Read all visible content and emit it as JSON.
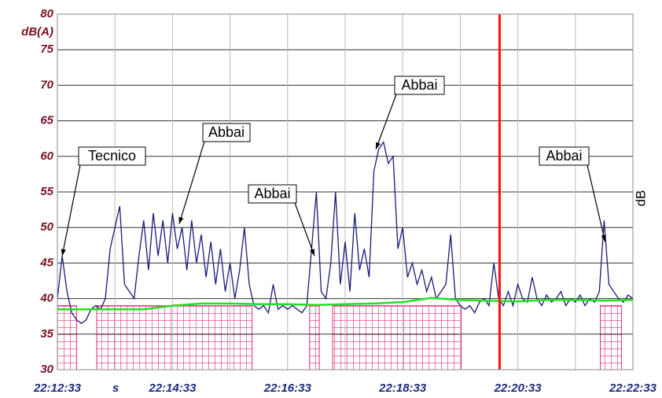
{
  "chart_data": {
    "type": "line",
    "ylabel": "dB(A)",
    "y2label": "dB",
    "xlabel": "s",
    "ylim": [
      30,
      80
    ],
    "yticks": [
      30,
      35,
      40,
      45,
      50,
      55,
      60,
      65,
      70,
      75,
      80
    ],
    "xlim": [
      79953,
      80553
    ],
    "xticks": [
      {
        "value": 79953,
        "label": "22:12:33"
      },
      {
        "value": 80073,
        "label": "22:14:33"
      },
      {
        "value": 80193,
        "label": "22:16:33"
      },
      {
        "value": 80313,
        "label": "22:18:33"
      },
      {
        "value": 80433,
        "label": "22:20:33"
      },
      {
        "value": 80553,
        "label": "22:22:33"
      }
    ],
    "xgrid": [
      80013,
      80133,
      80253,
      80373,
      80493
    ],
    "grid": true,
    "series": [
      {
        "color": "#1a1a7a",
        "x": [
          79953,
          79958,
          79963,
          79968,
          79973,
          79978,
          79983,
          79988,
          79993,
          79998,
          80003,
          80008,
          80013,
          80018,
          80023,
          80028,
          80033,
          80038,
          80043,
          80048,
          80053,
          80058,
          80063,
          80068,
          80073,
          80078,
          80083,
          80088,
          80093,
          80098,
          80103,
          80108,
          80113,
          80118,
          80123,
          80128,
          80133,
          80138,
          80143,
          80148,
          80153,
          80158,
          80163,
          80168,
          80173,
          80178,
          80183,
          80188,
          80193,
          80198,
          80203,
          80208,
          80213,
          80218,
          80223,
          80228,
          80233,
          80238,
          80243,
          80248,
          80253,
          80258,
          80263,
          80268,
          80273,
          80278,
          80283,
          80288,
          80293,
          80298,
          80303,
          80308,
          80313,
          80318,
          80323,
          80328,
          80333,
          80338,
          80343,
          80348,
          80353,
          80358,
          80363,
          80368,
          80373,
          80378,
          80383,
          80388,
          80393,
          80398,
          80403,
          80408,
          80413,
          80418,
          80423,
          80428,
          80433,
          80438,
          80443,
          80448,
          80453,
          80458,
          80463,
          80468,
          80473,
          80478,
          80483,
          80488,
          80493,
          80498,
          80503,
          80508,
          80513,
          80518,
          80523,
          80528,
          80533,
          80538,
          80543,
          80548,
          80553
        ],
        "values": [
          40,
          46,
          41,
          38,
          37,
          36.5,
          37,
          38.5,
          39,
          38.5,
          40,
          47,
          50,
          53,
          42,
          41,
          40,
          46,
          51,
          44,
          52,
          46,
          51,
          45,
          52,
          47,
          50,
          44,
          51,
          45,
          49,
          43,
          48,
          42,
          47,
          41,
          45,
          40,
          44,
          50,
          42,
          39,
          38.5,
          39,
          38,
          42,
          38.5,
          39,
          38.5,
          39,
          38.5,
          38,
          39,
          47,
          55,
          41,
          40,
          45,
          55,
          42,
          48,
          41,
          52,
          44,
          47,
          43,
          58,
          61,
          62,
          59,
          60,
          47,
          50,
          43,
          45,
          42,
          44,
          41,
          43,
          40,
          41,
          42,
          49,
          40,
          39,
          38.5,
          39,
          38,
          39.5,
          40,
          39,
          45,
          40,
          39,
          41,
          39,
          42,
          40,
          39.5,
          43,
          40,
          39,
          40.5,
          39.5,
          40,
          41,
          39,
          40,
          39.5,
          40.5,
          39,
          40,
          39.5,
          41,
          51,
          42,
          41,
          40,
          39.5,
          40.5,
          40
        ]
      },
      {
        "color": "#22e022",
        "x": [
          79953,
          79983,
          80013,
          80043,
          80073,
          80103,
          80133,
          80163,
          80193,
          80223,
          80253,
          80283,
          80313,
          80343,
          80373,
          80403,
          80433,
          80463,
          80493,
          80523,
          80553
        ],
        "values": [
          38.5,
          38.5,
          38.5,
          38.5,
          39,
          39.3,
          39.3,
          39.2,
          39.2,
          39.1,
          39.2,
          39.3,
          39.5,
          40.1,
          39.8,
          39.7,
          39.6,
          39.8,
          39.8,
          39.7,
          39.8
        ]
      }
    ],
    "marked_periods": {
      "color": "#e0287a",
      "start": [
        79953,
        79994,
        80216,
        80240,
        80519
      ],
      "end": [
        79973,
        80156,
        80226,
        80374,
        80541
      ],
      "top": [
        39,
        39,
        39,
        39,
        39
      ]
    },
    "cursor": {
      "x": 80414,
      "color": "#ff1010"
    },
    "annotations": [
      {
        "text": "Tecnico",
        "x": 79958,
        "y": 46
      },
      {
        "text": "Abbai",
        "x": 80080,
        "y": 50.5
      },
      {
        "text": "Abbai",
        "x": 80221,
        "y": 46
      },
      {
        "text": "Abbai",
        "x": 80285,
        "y": 61
      },
      {
        "text": "Abbai",
        "x": 80524,
        "y": 48
      }
    ]
  }
}
